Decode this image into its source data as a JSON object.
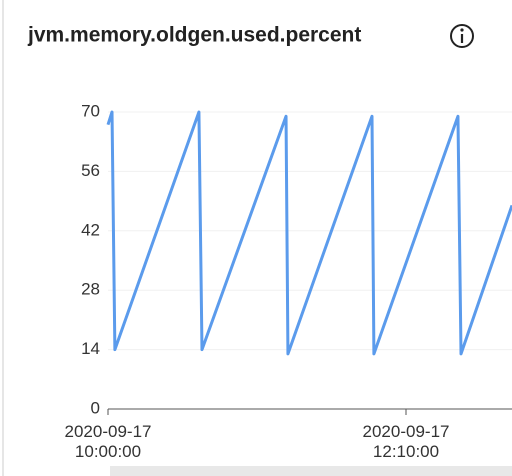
{
  "chart_data": {
    "type": "line",
    "title": "jvm.memory.oldgen.used.percent",
    "x": [
      "2020-09-17 10:00:00",
      "2020-09-17 10:01:45",
      "2020-09-17 10:03:00",
      "2020-09-17 10:39:40",
      "2020-09-17 10:41:00",
      "2020-09-17 11:17:40",
      "2020-09-17 11:18:30",
      "2020-09-17 11:55:10",
      "2020-09-17 11:56:00",
      "2020-09-17 12:32:40",
      "2020-09-17 12:34:00",
      "2020-09-17 12:56:15"
    ],
    "series": [
      {
        "name": "jvm.memory.oldgen.used.percent",
        "color": "#5b9bec",
        "values": [
          67,
          70,
          14,
          70,
          14,
          69,
          13,
          69,
          13,
          69,
          13,
          48
        ]
      }
    ],
    "xlim": [
      "2020-09-17 10:00:00",
      "2020-09-17 12:56:15"
    ],
    "xticks": [
      "2020-09-17 10:00:00",
      "2020-09-17 12:10:00"
    ],
    "ylim": [
      0,
      70
    ],
    "yticks": [
      0,
      14,
      28,
      42,
      56,
      70
    ],
    "grid": true
  }
}
